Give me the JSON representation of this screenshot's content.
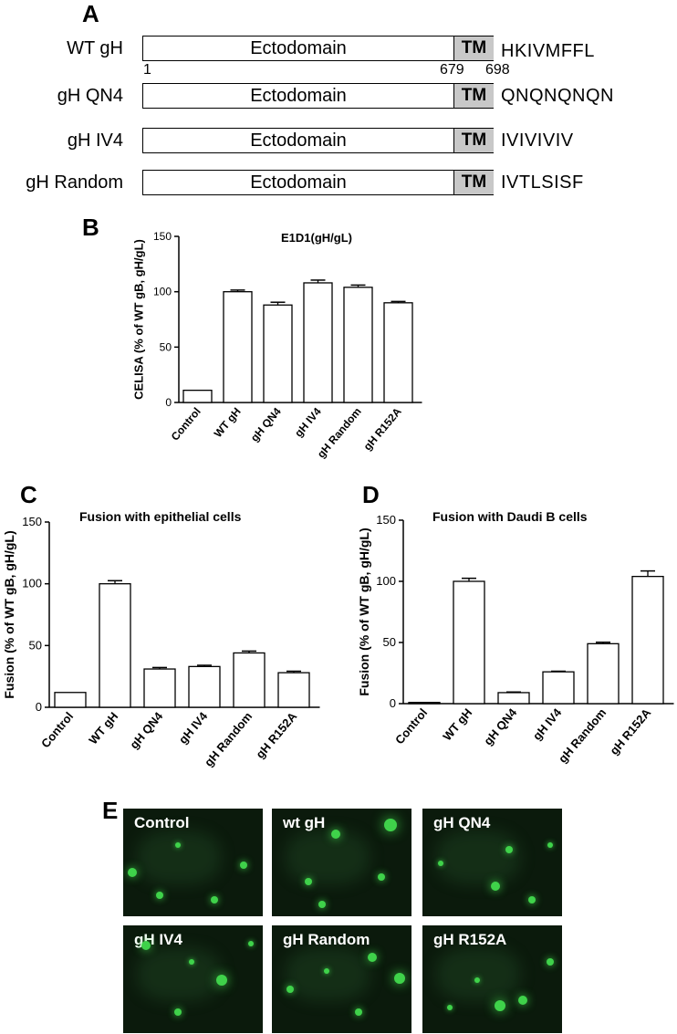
{
  "panel_a": {
    "letter": "A",
    "ectodomain_label": "Ectodomain",
    "tm_label": "TM",
    "positions": {
      "start": "1",
      "tm_start": "679",
      "tm_end": "698"
    },
    "constructs": [
      {
        "name": "WT gH",
        "tail": "HKIVMFFL"
      },
      {
        "name": "gH QN4",
        "tail": "QNQNQNQN"
      },
      {
        "name": "gH IV4",
        "tail": "IVIVIVIV"
      },
      {
        "name": "gH Random",
        "tail": "IVTLSISF"
      }
    ]
  },
  "chart_data": [
    {
      "panel": "B",
      "type": "bar",
      "title": "E1D1(gH/gL)",
      "ylabel": "CELISA (% of WT gB, gH/gL)",
      "xlabel": "",
      "categories": [
        "Control",
        "WT gH",
        "gH QN4",
        "gH IV4",
        "gH Random",
        "gH R152A"
      ],
      "values": [
        11,
        100,
        88,
        108,
        104,
        90
      ],
      "errors": [
        0,
        1.5,
        2.5,
        2.5,
        2,
        1.2
      ],
      "ylim": [
        0,
        150
      ],
      "yticks": [
        0,
        50,
        100,
        150
      ]
    },
    {
      "panel": "C",
      "type": "bar",
      "title": "Fusion with epithelial cells",
      "ylabel": "Fusion (% of WT gB, gH/gL)",
      "xlabel": "",
      "categories": [
        "Control",
        "WT gH",
        "gH QN4",
        "gH IV4",
        "gH Random",
        "gH R152A"
      ],
      "values": [
        12,
        100,
        31,
        33,
        44,
        28
      ],
      "errors": [
        0,
        2.5,
        1.2,
        1,
        1.5,
        1.2
      ],
      "ylim": [
        0,
        150
      ],
      "yticks": [
        0,
        50,
        100,
        150
      ]
    },
    {
      "panel": "D",
      "type": "bar",
      "title": "Fusion with Daudi B cells",
      "ylabel": "Fusion (% of WT gB, gH/gL)",
      "xlabel": "",
      "categories": [
        "Control",
        "WT gH",
        "gH QN4",
        "gH IV4",
        "gH Random",
        "gH R152A"
      ],
      "values": [
        1,
        100,
        9,
        26,
        49,
        104
      ],
      "errors": [
        0,
        2.5,
        0.5,
        0.5,
        1.2,
        4.5
      ],
      "ylim": [
        0,
        150
      ],
      "yticks": [
        0,
        50,
        100,
        150
      ]
    }
  ],
  "panel_e": {
    "letter": "E",
    "images": [
      "Control",
      "wt gH",
      "gH QN4",
      "gH IV4",
      "gH Random",
      "gH R152A"
    ],
    "cell_color": "#3fd24a"
  },
  "colors": {
    "tm_fill": "#c8c8c8",
    "bar_fill": "#ffffff",
    "micro_bg": "#0b1a0c"
  }
}
